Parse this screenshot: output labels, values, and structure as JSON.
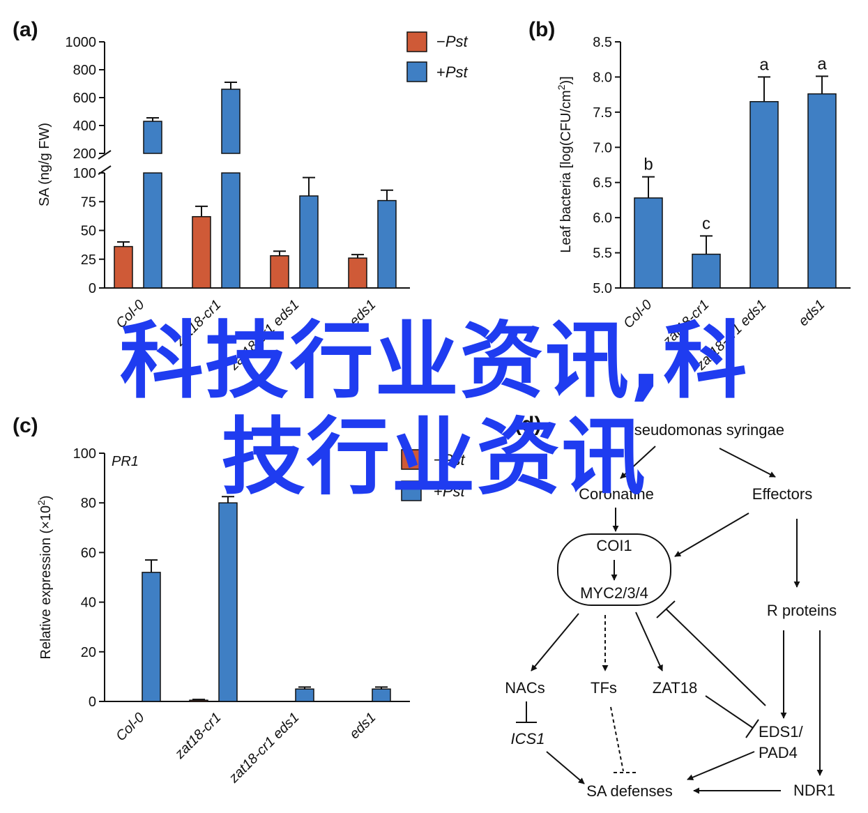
{
  "colors": {
    "minus": "#cf5a37",
    "plus": "#3f7fc4",
    "axis": "#111111",
    "watermark": "#1f3cf0"
  },
  "watermark": {
    "line1": "科技行业资讯,科",
    "line2": "技行业资讯"
  },
  "chart_data": [
    {
      "panel": "(a)",
      "type": "bar",
      "ylabel": "SA (ng/g FW)",
      "categories": [
        "Col-0",
        "zat18-cr1",
        "zat18-cr1 eds1",
        "eds1"
      ],
      "y_ticks_lower": [
        "0",
        "25",
        "50",
        "75",
        "100"
      ],
      "y_ticks_upper": [
        "200",
        "400",
        "600",
        "800",
        "1000"
      ],
      "axis_break": {
        "lower_max": 100,
        "upper_min": 200,
        "upper_max": 1000
      },
      "legend_prefix": [
        "−",
        "+"
      ],
      "legend_term": "Pst",
      "series": [
        {
          "name": "−Pst",
          "values": [
            36,
            62,
            28,
            26
          ],
          "errors": [
            4,
            9,
            4,
            3
          ]
        },
        {
          "name": "+Pst",
          "values": [
            430,
            660,
            80,
            76
          ],
          "errors": [
            25,
            50,
            16,
            9
          ]
        }
      ]
    },
    {
      "panel": "(b)",
      "type": "bar",
      "ylabel": "Leaf bacteria [log(CFU/cm",
      "ylabel_sup": "2",
      "ylabel_end": ")]",
      "categories": [
        "Col-0",
        "zat18-cr1",
        "zat18-cr1 eds1",
        "eds1"
      ],
      "values": [
        6.28,
        5.48,
        7.65,
        7.76
      ],
      "errors": [
        0.3,
        0.26,
        0.35,
        0.25
      ],
      "letters": [
        "b",
        "c",
        "a",
        "a"
      ],
      "ylim": [
        5.0,
        8.5
      ],
      "y_ticks": [
        "5.0",
        "5.5",
        "6.0",
        "6.5",
        "7.0",
        "7.5",
        "8.0",
        "8.5"
      ]
    },
    {
      "panel": "(c)",
      "type": "bar",
      "title": "PR1",
      "ylabel": "Relative expression (×10",
      "ylabel_sup": "2",
      "ylabel_end": ")",
      "categories": [
        "Col-0",
        "zat18-cr1",
        "zat18-cr1 eds1",
        "eds1"
      ],
      "ylim": [
        0,
        100
      ],
      "y_ticks": [
        "0",
        "20",
        "40",
        "60",
        "80",
        "100"
      ],
      "legend_prefix": [
        "−",
        "+"
      ],
      "legend_term": "Pst",
      "series": [
        {
          "name": "−Pst",
          "values": [
            0,
            0.5,
            0,
            0
          ],
          "errors": [
            0,
            0.3,
            0,
            0
          ]
        },
        {
          "name": "+Pst",
          "values": [
            52,
            80,
            5,
            5
          ],
          "errors": [
            5,
            2.5,
            0.8,
            0.8
          ]
        }
      ]
    }
  ],
  "diagram": {
    "panel": "(d)",
    "pathogen": "Pseudomonas syringae",
    "coronatine": "Coronatine",
    "effectors": "Effectors",
    "coi1": "COI1",
    "myc": "MYC2/3/4",
    "r_proteins": "R proteins",
    "nacs": "NACs",
    "tfs": "TFs",
    "zat18": "ZAT18",
    "ics1": "ICS1",
    "eds1_a": "EDS1/",
    "eds1_b": "PAD4",
    "ndr1": "NDR1",
    "sa_defenses": "SA defenses"
  }
}
